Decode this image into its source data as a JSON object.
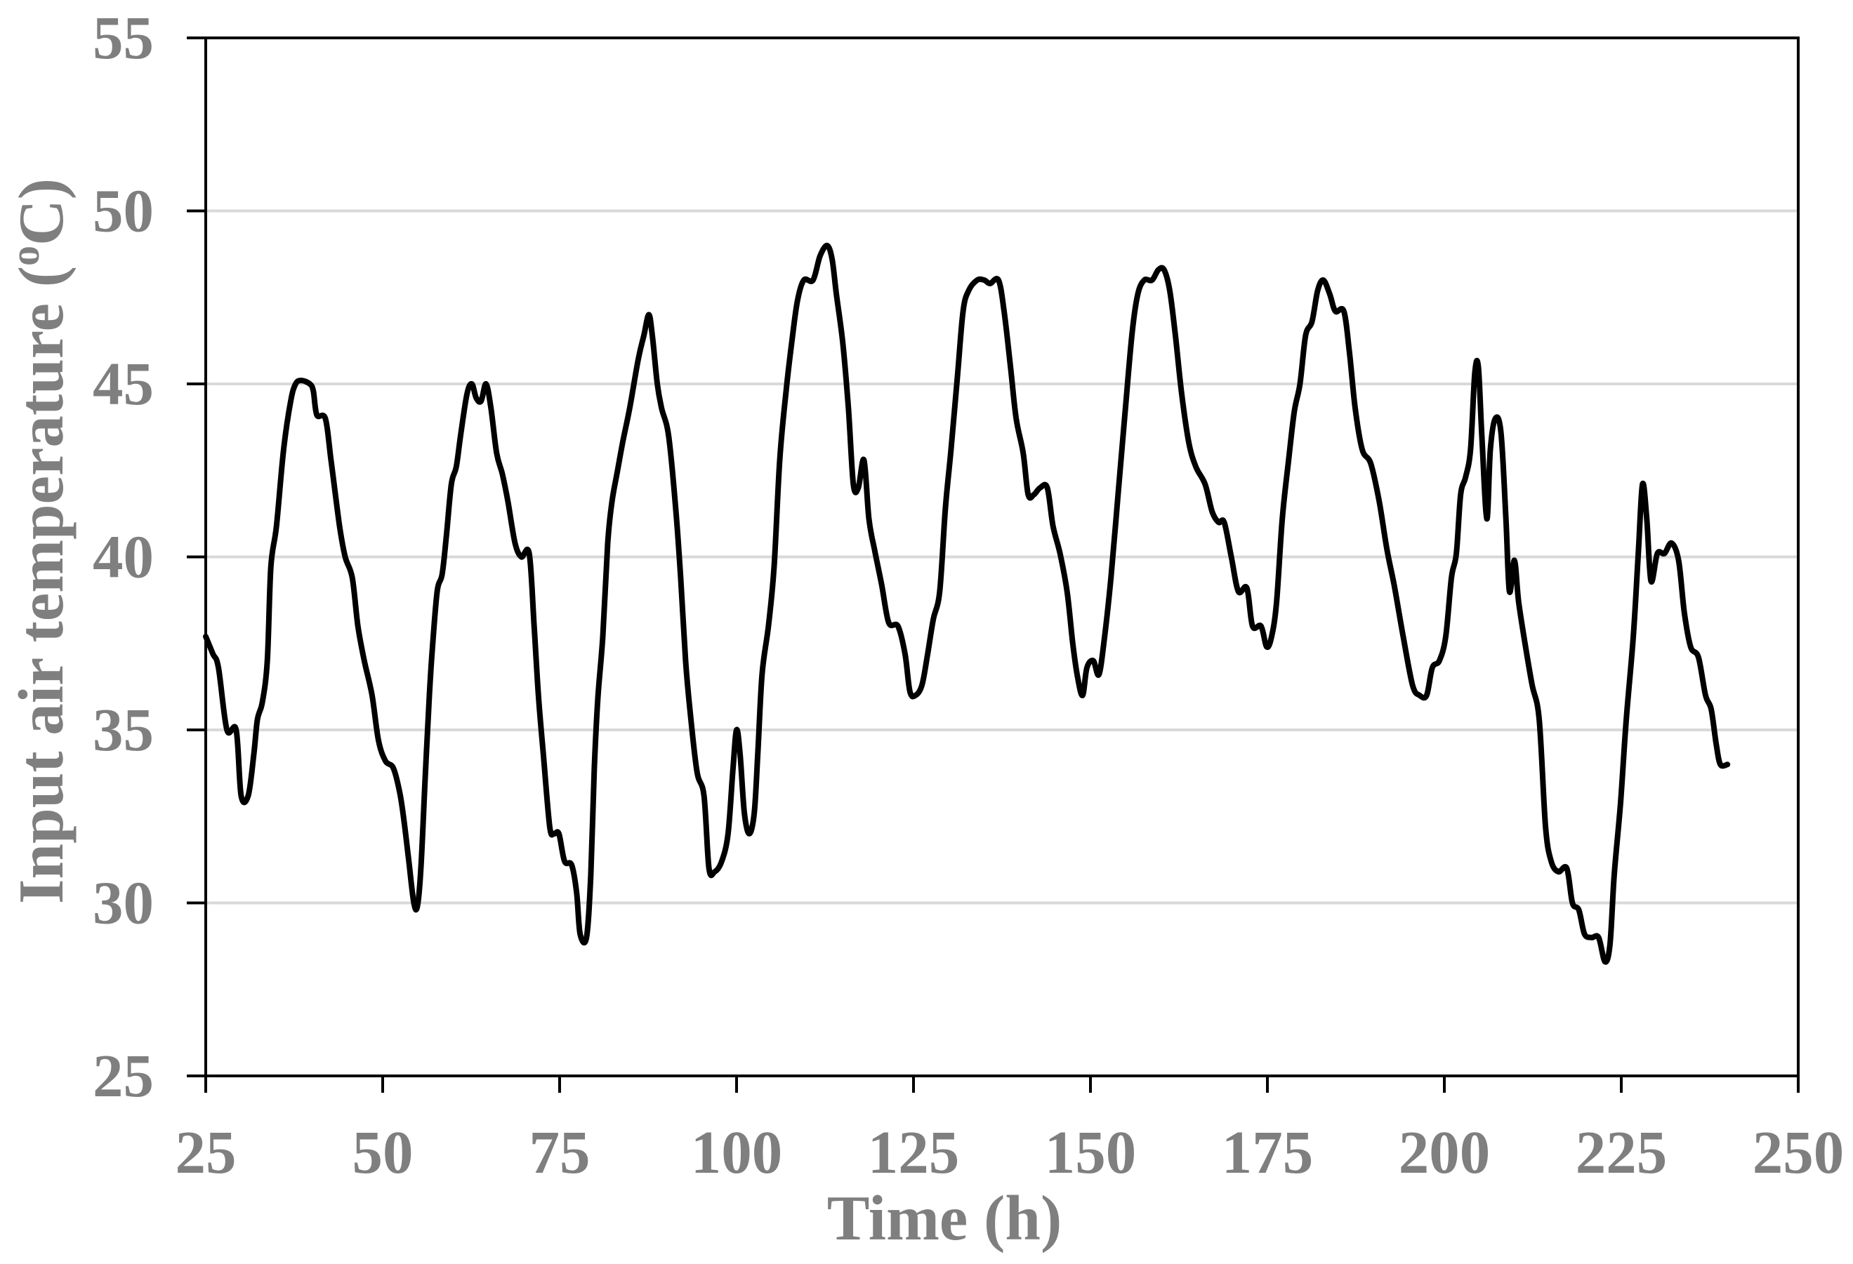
{
  "chart_data": {
    "type": "line",
    "xlabel": "Time (h)",
    "ylabel": [
      {
        "text": "Input air temperature ("
      },
      {
        "text": "o",
        "superscript": true
      },
      {
        "text": "C)"
      }
    ],
    "xlim": [
      25,
      250
    ],
    "ylim": [
      25,
      55
    ],
    "xticks": [
      25,
      50,
      75,
      100,
      125,
      150,
      175,
      200,
      225,
      250
    ],
    "yticks": [
      25,
      30,
      35,
      40,
      45,
      50,
      55
    ],
    "grid": {
      "horizontal": true,
      "vertical": false
    },
    "legend": false,
    "series": [
      {
        "color": "#000000",
        "points": [
          [
            25,
            37.7
          ],
          [
            26,
            37.2
          ],
          [
            26.8,
            36.8
          ],
          [
            28,
            35.0
          ],
          [
            29.3,
            35.0
          ],
          [
            30,
            33.1
          ],
          [
            31,
            33.1
          ],
          [
            31.8,
            34.3
          ],
          [
            32.3,
            35.3
          ],
          [
            33,
            35.8
          ],
          [
            33.7,
            37.0
          ],
          [
            34.2,
            39.7
          ],
          [
            35,
            40.9
          ],
          [
            36,
            43.1
          ],
          [
            37,
            44.5
          ],
          [
            37.7,
            45.0
          ],
          [
            38.5,
            45.1
          ],
          [
            39.7,
            45.0
          ],
          [
            40.2,
            44.8
          ],
          [
            40.7,
            44.1
          ],
          [
            41.9,
            44.0
          ],
          [
            42.7,
            42.8
          ],
          [
            43.9,
            40.9
          ],
          [
            44.7,
            40.0
          ],
          [
            45.7,
            39.4
          ],
          [
            46.5,
            38.0
          ],
          [
            47.4,
            37.0
          ],
          [
            48.5,
            36.0
          ],
          [
            49.4,
            34.7
          ],
          [
            50.4,
            34.1
          ],
          [
            51.5,
            33.9
          ],
          [
            52.4,
            33.2
          ],
          [
            53,
            32.4
          ],
          [
            53.7,
            31.2
          ],
          [
            54.4,
            30.0
          ],
          [
            54.9,
            29.9
          ],
          [
            55.4,
            31.0
          ],
          [
            56,
            33.6
          ],
          [
            56.6,
            36.0
          ],
          [
            57,
            37.3
          ],
          [
            57.7,
            39.0
          ],
          [
            58.4,
            39.5
          ],
          [
            59,
            40.6
          ],
          [
            59.7,
            42.1
          ],
          [
            60.4,
            42.6
          ],
          [
            61,
            43.5
          ],
          [
            61.9,
            44.7
          ],
          [
            62.6,
            45.0
          ],
          [
            63.2,
            44.6
          ],
          [
            63.9,
            44.5
          ],
          [
            64.6,
            45.0
          ],
          [
            65.3,
            44.3
          ],
          [
            66.1,
            43.0
          ],
          [
            66.9,
            42.4
          ],
          [
            67.7,
            41.6
          ],
          [
            68.7,
            40.4
          ],
          [
            69.6,
            40.0
          ],
          [
            70.7,
            40.1
          ],
          [
            71.4,
            38.0
          ],
          [
            72,
            36.0
          ],
          [
            72.7,
            34.3
          ],
          [
            73.6,
            32.2
          ],
          [
            74.2,
            32.0
          ],
          [
            74.9,
            32.0
          ],
          [
            75.7,
            31.2
          ],
          [
            76.7,
            31.1
          ],
          [
            77.4,
            30.3
          ],
          [
            77.9,
            29.1
          ],
          [
            78.8,
            29.0
          ],
          [
            79.4,
            30.8
          ],
          [
            79.9,
            33.9
          ],
          [
            80.4,
            35.9
          ],
          [
            81.1,
            37.7
          ],
          [
            81.8,
            40.4
          ],
          [
            82.4,
            41.6
          ],
          [
            83.1,
            42.4
          ],
          [
            83.9,
            43.3
          ],
          [
            84.9,
            44.3
          ],
          [
            86.1,
            45.7
          ],
          [
            86.9,
            46.4
          ],
          [
            87.6,
            47.0
          ],
          [
            88.1,
            46.4
          ],
          [
            88.8,
            45.0
          ],
          [
            89.4,
            44.3
          ],
          [
            90.4,
            43.5
          ],
          [
            91.4,
            41.4
          ],
          [
            92.1,
            39.4
          ],
          [
            92.8,
            37.0
          ],
          [
            93.4,
            35.6
          ],
          [
            94.4,
            33.8
          ],
          [
            95.4,
            33.1
          ],
          [
            96.1,
            31.0
          ],
          [
            96.9,
            30.9
          ],
          [
            97.9,
            31.2
          ],
          [
            98.8,
            32.0
          ],
          [
            99.5,
            33.9
          ],
          [
            100,
            35.0
          ],
          [
            100.5,
            34.3
          ],
          [
            101.1,
            32.6
          ],
          [
            101.8,
            32.0
          ],
          [
            102.5,
            32.6
          ],
          [
            103,
            34.3
          ],
          [
            103.6,
            36.6
          ],
          [
            104.5,
            38.0
          ],
          [
            105.3,
            39.7
          ],
          [
            106.1,
            42.8
          ],
          [
            107,
            44.8
          ],
          [
            107.8,
            46.2
          ],
          [
            108.6,
            47.4
          ],
          [
            109.5,
            48.0
          ],
          [
            110.8,
            48.0
          ],
          [
            111.8,
            48.7
          ],
          [
            112.8,
            49.0
          ],
          [
            113.5,
            48.6
          ],
          [
            114.1,
            47.6
          ],
          [
            115,
            46.2
          ],
          [
            115.8,
            44.3
          ],
          [
            116.5,
            42.1
          ],
          [
            117.2,
            42.0
          ],
          [
            118,
            42.8
          ],
          [
            118.7,
            41.1
          ],
          [
            119.5,
            40.2
          ],
          [
            120.5,
            39.2
          ],
          [
            121.5,
            38.1
          ],
          [
            122.8,
            38.0
          ],
          [
            123.8,
            37.2
          ],
          [
            124.5,
            36.1
          ],
          [
            125.3,
            36.0
          ],
          [
            126.2,
            36.3
          ],
          [
            127,
            37.2
          ],
          [
            127.8,
            38.2
          ],
          [
            128.7,
            39.0
          ],
          [
            129.5,
            41.4
          ],
          [
            130.3,
            43.1
          ],
          [
            131.2,
            45.2
          ],
          [
            132,
            47.1
          ],
          [
            132.8,
            47.7
          ],
          [
            134,
            48.0
          ],
          [
            135,
            48.0
          ],
          [
            135.8,
            47.9
          ],
          [
            137,
            48.0
          ],
          [
            137.8,
            47.1
          ],
          [
            138.7,
            45.5
          ],
          [
            139.5,
            44.0
          ],
          [
            140.5,
            43.0
          ],
          [
            141.2,
            41.8
          ],
          [
            142,
            41.8
          ],
          [
            142.9,
            42.0
          ],
          [
            143.9,
            42.0
          ],
          [
            144.7,
            40.9
          ],
          [
            145.7,
            40.1
          ],
          [
            146.7,
            39.0
          ],
          [
            147.5,
            37.5
          ],
          [
            148.2,
            36.5
          ],
          [
            148.9,
            36.0
          ],
          [
            149.5,
            36.8
          ],
          [
            150.4,
            37.0
          ],
          [
            151.2,
            36.6
          ],
          [
            152,
            37.7
          ],
          [
            152.9,
            39.4
          ],
          [
            153.9,
            41.8
          ],
          [
            154.9,
            44.2
          ],
          [
            155.9,
            46.5
          ],
          [
            156.7,
            47.6
          ],
          [
            157.6,
            48.0
          ],
          [
            158.7,
            48.0
          ],
          [
            159.6,
            48.3
          ],
          [
            160.4,
            48.3
          ],
          [
            161.2,
            47.7
          ],
          [
            162,
            46.4
          ],
          [
            162.9,
            44.7
          ],
          [
            163.9,
            43.3
          ],
          [
            164.9,
            42.6
          ],
          [
            166.2,
            42.1
          ],
          [
            167.2,
            41.3
          ],
          [
            168.1,
            41.0
          ],
          [
            168.9,
            41.0
          ],
          [
            169.9,
            40.0
          ],
          [
            170.9,
            39.0
          ],
          [
            172.1,
            39.1
          ],
          [
            172.9,
            38.0
          ],
          [
            174.1,
            38.0
          ],
          [
            174.9,
            37.4
          ],
          [
            175.6,
            37.7
          ],
          [
            176.3,
            38.7
          ],
          [
            177.1,
            41.1
          ],
          [
            178,
            42.8
          ],
          [
            178.8,
            44.2
          ],
          [
            179.6,
            45.0
          ],
          [
            180.4,
            46.4
          ],
          [
            181.3,
            46.8
          ],
          [
            182.1,
            47.7
          ],
          [
            182.9,
            48.0
          ],
          [
            183.8,
            47.6
          ],
          [
            184.6,
            47.1
          ],
          [
            185.8,
            47.1
          ],
          [
            186.6,
            45.9
          ],
          [
            187.4,
            44.3
          ],
          [
            188.4,
            43.1
          ],
          [
            189.6,
            42.7
          ],
          [
            190.8,
            41.6
          ],
          [
            191.9,
            40.2
          ],
          [
            192.9,
            39.2
          ],
          [
            194.1,
            37.8
          ],
          [
            195.5,
            36.3
          ],
          [
            196.5,
            36.0
          ],
          [
            197.5,
            36.0
          ],
          [
            198.3,
            36.8
          ],
          [
            199.3,
            37.0
          ],
          [
            200.2,
            37.7
          ],
          [
            201,
            39.4
          ],
          [
            201.7,
            40.1
          ],
          [
            202.3,
            41.8
          ],
          [
            203,
            42.3
          ],
          [
            203.7,
            43.1
          ],
          [
            204.3,
            45.3
          ],
          [
            204.8,
            45.5
          ],
          [
            205.3,
            43.5
          ],
          [
            206,
            41.1
          ],
          [
            206.5,
            43.1
          ],
          [
            207.2,
            44.0
          ],
          [
            208,
            43.6
          ],
          [
            208.7,
            41.1
          ],
          [
            209.2,
            39.0
          ],
          [
            209.9,
            39.9
          ],
          [
            210.5,
            38.7
          ],
          [
            211.4,
            37.5
          ],
          [
            212.4,
            36.3
          ],
          [
            213.4,
            35.3
          ],
          [
            214.3,
            32.2
          ],
          [
            215.1,
            31.2
          ],
          [
            216.1,
            30.9
          ],
          [
            217.3,
            31.0
          ],
          [
            218.1,
            30.0
          ],
          [
            219,
            29.8
          ],
          [
            219.8,
            29.1
          ],
          [
            220.8,
            29.0
          ],
          [
            221.8,
            29.0
          ],
          [
            222.7,
            28.3
          ],
          [
            223.4,
            28.8
          ],
          [
            224,
            30.8
          ],
          [
            224.9,
            32.9
          ],
          [
            225.7,
            35.3
          ],
          [
            226.7,
            37.7
          ],
          [
            227.4,
            40.1
          ],
          [
            228,
            42.1
          ],
          [
            228.6,
            41.1
          ],
          [
            229.2,
            39.3
          ],
          [
            230.1,
            40.1
          ],
          [
            231.1,
            40.1
          ],
          [
            232.1,
            40.4
          ],
          [
            233.1,
            39.9
          ],
          [
            233.9,
            38.4
          ],
          [
            234.8,
            37.4
          ],
          [
            235.9,
            37.1
          ],
          [
            236.9,
            36.0
          ],
          [
            237.7,
            35.6
          ],
          [
            238.4,
            34.6
          ],
          [
            239,
            34.0
          ],
          [
            240,
            34.0
          ]
        ]
      }
    ]
  },
  "colors": {
    "background": "#ffffff",
    "line": "#000000",
    "gridline": "#d9d9d9",
    "axis": "#000000",
    "label_text": "#7f7f7f"
  }
}
